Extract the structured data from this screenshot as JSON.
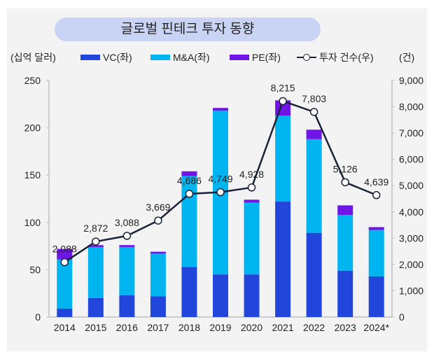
{
  "chart_data": {
    "type": "bar",
    "subtype": "stacked-bar-with-line",
    "title": "글로벌 핀테크 투자 동향",
    "categories": [
      "2014",
      "2015",
      "2016",
      "2017",
      "2018",
      "2019",
      "2020",
      "2021",
      "2022",
      "2023",
      "2024*"
    ],
    "ylabel_left": "(십억 달러)",
    "ylabel_right": "(건)",
    "ylim_left": [
      0,
      250
    ],
    "yticks_left": [
      0,
      50,
      100,
      150,
      200,
      250
    ],
    "ylim_right": [
      0,
      9000
    ],
    "yticks_right": [
      "0",
      "1,000",
      "2,000",
      "3,000",
      "4,000",
      "5,000",
      "6,000",
      "7,000",
      "8,000",
      "9,000"
    ],
    "yticks_right_values": [
      0,
      1000,
      2000,
      3000,
      4000,
      5000,
      6000,
      7000,
      8000,
      9000
    ],
    "series": [
      {
        "name": "VC(좌)",
        "type": "bar",
        "axis": "left",
        "color": "#2246dc",
        "values": [
          9,
          20,
          23,
          22,
          53,
          45,
          45,
          122,
          89,
          49,
          43
        ]
      },
      {
        "name": "M&A(좌)",
        "type": "bar",
        "axis": "left",
        "color": "#00b4f0",
        "values": [
          52,
          54,
          51,
          45,
          96,
          173,
          76,
          91,
          99,
          59,
          49
        ]
      },
      {
        "name": "PE(좌)",
        "type": "bar",
        "axis": "left",
        "color": "#6f16e6",
        "values": [
          11,
          2,
          2,
          2,
          5,
          3,
          3,
          16,
          10,
          10,
          3
        ]
      },
      {
        "name": "투자 건수(우)",
        "type": "line",
        "axis": "right",
        "color": "#1a2238",
        "values": [
          2088,
          2872,
          3088,
          3669,
          4686,
          4749,
          4928,
          8215,
          7803,
          5126,
          4639
        ],
        "labels": [
          "2,088",
          "2,872",
          "3,088",
          "3,669",
          "4,686",
          "4,749",
          "4,928",
          "8,215",
          "7,803",
          "5,126",
          "4,639"
        ]
      }
    ],
    "legend": "top",
    "grid": false
  }
}
